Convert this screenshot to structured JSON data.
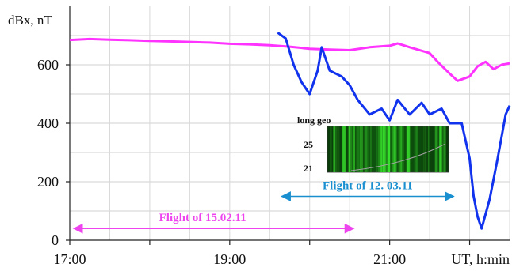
{
  "chart_data": {
    "type": "line",
    "title": "",
    "ylabel": "dBx, nT",
    "xlabel": "UT, h:min",
    "ylim": [
      0,
      800
    ],
    "xlim_hours": [
      17.0,
      22.5
    ],
    "y_ticks": [
      0,
      200,
      400,
      600
    ],
    "y_tick_labels": [
      "0",
      "200",
      "400",
      "600"
    ],
    "x_ticks": [
      17.0,
      19.0,
      21.0
    ],
    "x_tick_labels": [
      "17:00",
      "19:00",
      "21:00"
    ],
    "grid": true,
    "series": [
      {
        "color": "#ff33ff",
        "x": [
          17.0,
          17.25,
          17.5,
          17.75,
          18.0,
          18.25,
          18.5,
          18.75,
          19.0,
          19.25,
          19.5,
          19.75,
          20.0,
          20.25,
          20.5,
          20.75,
          21.0,
          21.1,
          21.25,
          21.5,
          21.6,
          21.75,
          21.85,
          22.0,
          22.1,
          22.2,
          22.3,
          22.4,
          22.5
        ],
        "y": [
          685,
          688,
          686,
          684,
          682,
          680,
          678,
          676,
          672,
          670,
          667,
          662,
          655,
          652,
          650,
          660,
          665,
          673,
          660,
          640,
          610,
          570,
          545,
          560,
          595,
          610,
          585,
          600,
          605
        ]
      },
      {
        "color": "#1133ee",
        "x": [
          19.6,
          19.7,
          19.8,
          19.9,
          20.0,
          20.1,
          20.15,
          20.25,
          20.4,
          20.5,
          20.6,
          20.75,
          20.9,
          21.0,
          21.1,
          21.25,
          21.4,
          21.5,
          21.65,
          21.75,
          21.9,
          22.0,
          22.05,
          22.1,
          22.15,
          22.25,
          22.35,
          22.45,
          22.5
        ],
        "y": [
          710,
          690,
          600,
          540,
          500,
          580,
          660,
          580,
          560,
          530,
          480,
          430,
          450,
          410,
          480,
          430,
          470,
          430,
          450,
          400,
          400,
          280,
          150,
          80,
          40,
          140,
          280,
          430,
          460
        ]
      }
    ],
    "annotations": [
      {
        "text": "Flight of 15.02.11",
        "color": "#ee44ee",
        "x_start": 17.05,
        "x_end": 20.55,
        "y": 40
      },
      {
        "text": "Flight of 12. 03.11",
        "color": "#1a8fd0",
        "x_start": 19.65,
        "x_end": 21.8,
        "y": 150
      }
    ],
    "inset": {
      "title": "long geo",
      "y_tick_labels": [
        "25",
        "21"
      ]
    }
  }
}
